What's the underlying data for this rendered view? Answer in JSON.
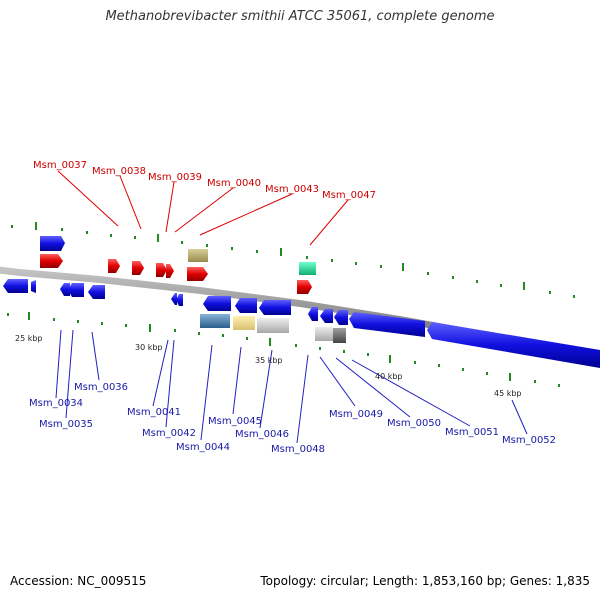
{
  "title": "Methanobrevibacter smithii ATCC 35061, complete genome",
  "footer": {
    "accession": "Accession: NC_009515",
    "topology": "Topology: circular; Length: 1,853,160 bp; Genes: 1,835"
  },
  "colors": {
    "forward_gene": "#dd0000",
    "reverse_gene": "#1010ee",
    "forward_label": "#cc0000",
    "reverse_label": "#1a1aa6",
    "backbone": "#888888",
    "tick": "#228822"
  },
  "scale_ticks": [
    "25 kbp",
    "30 kbp",
    "35 kbp",
    "40 kbp",
    "45 kbp"
  ],
  "forward_labels": [
    "Msm_0037",
    "Msm_0038",
    "Msm_0039",
    "Msm_0040",
    "Msm_0043",
    "Msm_0047"
  ],
  "reverse_labels": [
    "Msm_0034",
    "Msm_0035",
    "Msm_0036",
    "Msm_0041",
    "Msm_0042",
    "Msm_0044",
    "Msm_0045",
    "Msm_0046",
    "Msm_0048",
    "Msm_0049",
    "Msm_0050",
    "Msm_0051",
    "Msm_0052"
  ]
}
